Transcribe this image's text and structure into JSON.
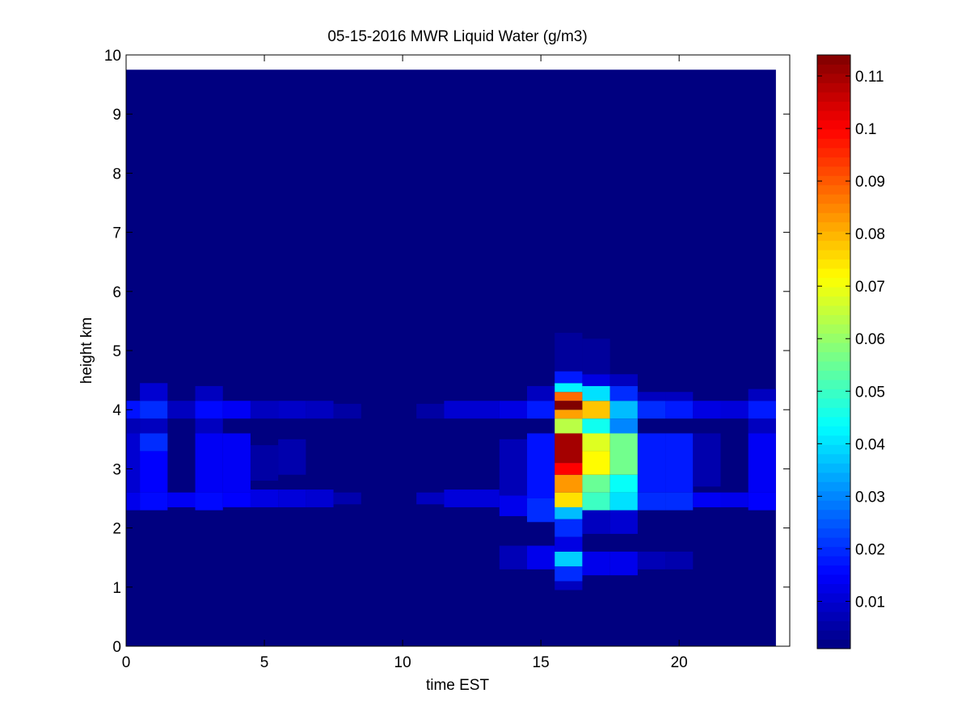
{
  "chart_data": {
    "type": "heatmap",
    "title": "05-15-2016 MWR Liquid Water (g/m3)",
    "xlabel": "time EST",
    "ylabel": "height km",
    "xlim": [
      0,
      24
    ],
    "ylim": [
      0,
      10
    ],
    "x_ticks": [
      0,
      5,
      10,
      15,
      20
    ],
    "y_ticks": [
      0,
      1,
      2,
      3,
      4,
      5,
      6,
      7,
      8,
      9,
      10
    ],
    "colormap": "jet",
    "colorbar": {
      "min": 0.001,
      "max": 0.114,
      "ticks": [
        0.01,
        0.02,
        0.03,
        0.04,
        0.05,
        0.06,
        0.07,
        0.08,
        0.09,
        0.1,
        0.11
      ]
    },
    "background_value": 0.001,
    "grid": false,
    "data_extent": {
      "x": [
        0,
        23.5
      ],
      "y": [
        0,
        9.75
      ]
    },
    "time_bins": [
      {
        "t": [
          0,
          0.5
        ],
        "layers": [
          [
            2.3,
            2.6,
            0.013
          ],
          [
            2.6,
            3.6,
            0.01
          ],
          [
            3.6,
            3.85,
            0.007
          ],
          [
            3.85,
            4.15,
            0.017
          ]
        ]
      },
      {
        "t": [
          0.5,
          1.5
        ],
        "layers": [
          [
            2.3,
            2.6,
            0.016
          ],
          [
            2.6,
            3.3,
            0.015
          ],
          [
            3.3,
            3.6,
            0.02
          ],
          [
            3.6,
            3.85,
            0.008
          ],
          [
            3.85,
            4.15,
            0.02
          ],
          [
            4.15,
            4.45,
            0.01
          ]
        ]
      },
      {
        "t": [
          1.5,
          2.5
        ],
        "layers": [
          [
            2.35,
            2.6,
            0.014
          ],
          [
            3.85,
            4.15,
            0.008
          ]
        ]
      },
      {
        "t": [
          2.5,
          3.5
        ],
        "layers": [
          [
            2.3,
            2.6,
            0.016
          ],
          [
            2.6,
            3.6,
            0.014
          ],
          [
            3.6,
            3.85,
            0.008
          ],
          [
            3.85,
            4.15,
            0.016
          ],
          [
            4.15,
            4.4,
            0.008
          ]
        ]
      },
      {
        "t": [
          3.5,
          4.5
        ],
        "layers": [
          [
            2.35,
            2.6,
            0.015
          ],
          [
            2.6,
            3.6,
            0.014
          ],
          [
            3.85,
            4.15,
            0.014
          ]
        ]
      },
      {
        "t": [
          4.5,
          5.5
        ],
        "layers": [
          [
            2.35,
            2.65,
            0.012
          ],
          [
            2.8,
            3.4,
            0.005
          ],
          [
            3.85,
            4.15,
            0.008
          ]
        ]
      },
      {
        "t": [
          5.5,
          6.5
        ],
        "layers": [
          [
            2.35,
            2.65,
            0.011
          ],
          [
            2.9,
            3.5,
            0.006
          ],
          [
            3.85,
            4.15,
            0.009
          ]
        ]
      },
      {
        "t": [
          6.5,
          7.5
        ],
        "layers": [
          [
            2.35,
            2.65,
            0.01
          ],
          [
            3.85,
            4.15,
            0.008
          ]
        ]
      },
      {
        "t": [
          7.5,
          8.5
        ],
        "layers": [
          [
            2.4,
            2.6,
            0.006
          ],
          [
            3.85,
            4.1,
            0.005
          ]
        ]
      },
      {
        "t": [
          10.5,
          11.5
        ],
        "layers": [
          [
            2.4,
            2.6,
            0.008
          ],
          [
            3.85,
            4.1,
            0.005
          ]
        ]
      },
      {
        "t": [
          11.5,
          13.5
        ],
        "layers": [
          [
            2.35,
            2.65,
            0.011
          ],
          [
            3.85,
            4.15,
            0.01
          ]
        ]
      },
      {
        "t": [
          13.5,
          14.5
        ],
        "layers": [
          [
            1.3,
            1.7,
            0.007
          ],
          [
            2.2,
            2.55,
            0.013
          ],
          [
            2.55,
            3.5,
            0.007
          ],
          [
            3.85,
            4.15,
            0.012
          ]
        ]
      },
      {
        "t": [
          14.5,
          15.5
        ],
        "layers": [
          [
            1.3,
            1.7,
            0.013
          ],
          [
            2.1,
            2.5,
            0.02
          ],
          [
            2.5,
            3.6,
            0.017
          ],
          [
            3.85,
            4.15,
            0.018
          ],
          [
            4.15,
            4.4,
            0.008
          ]
        ]
      },
      {
        "t": [
          15.5,
          16.5
        ],
        "layers": [
          [
            0.95,
            1.1,
            0.008
          ],
          [
            1.1,
            1.35,
            0.02
          ],
          [
            1.35,
            1.6,
            0.038
          ],
          [
            1.6,
            1.85,
            0.012
          ],
          [
            1.85,
            2.15,
            0.02
          ],
          [
            2.15,
            2.35,
            0.036
          ],
          [
            2.35,
            2.6,
            0.075
          ],
          [
            2.6,
            2.9,
            0.083
          ],
          [
            2.9,
            3.1,
            0.1
          ],
          [
            3.1,
            3.6,
            0.11
          ],
          [
            3.6,
            3.85,
            0.064
          ],
          [
            3.85,
            4.0,
            0.082
          ],
          [
            4.0,
            4.15,
            0.114
          ],
          [
            4.15,
            4.3,
            0.088
          ],
          [
            4.3,
            4.45,
            0.042
          ],
          [
            4.45,
            4.65,
            0.018
          ],
          [
            4.65,
            5.3,
            0.004
          ]
        ]
      },
      {
        "t": [
          16.5,
          17.5
        ],
        "layers": [
          [
            1.2,
            1.6,
            0.013
          ],
          [
            1.9,
            2.3,
            0.008
          ],
          [
            2.3,
            2.6,
            0.05
          ],
          [
            2.6,
            2.9,
            0.055
          ],
          [
            2.9,
            3.3,
            0.072
          ],
          [
            3.3,
            3.6,
            0.068
          ],
          [
            3.6,
            3.85,
            0.045
          ],
          [
            3.85,
            4.15,
            0.078
          ],
          [
            4.15,
            4.4,
            0.04
          ],
          [
            4.4,
            4.6,
            0.012
          ],
          [
            4.6,
            5.2,
            0.004
          ]
        ]
      },
      {
        "t": [
          17.5,
          18.5
        ],
        "layers": [
          [
            1.2,
            1.6,
            0.013
          ],
          [
            1.9,
            2.3,
            0.01
          ],
          [
            2.3,
            2.6,
            0.04
          ],
          [
            2.6,
            2.9,
            0.044
          ],
          [
            2.9,
            3.6,
            0.056
          ],
          [
            3.6,
            3.85,
            0.03
          ],
          [
            3.85,
            4.15,
            0.036
          ],
          [
            4.15,
            4.4,
            0.02
          ],
          [
            4.4,
            4.6,
            0.008
          ]
        ]
      },
      {
        "t": [
          18.5,
          19.5
        ],
        "layers": [
          [
            1.3,
            1.6,
            0.007
          ],
          [
            2.3,
            2.6,
            0.02
          ],
          [
            2.6,
            3.6,
            0.018
          ],
          [
            3.85,
            4.15,
            0.02
          ],
          [
            4.15,
            4.3,
            0.008
          ]
        ]
      },
      {
        "t": [
          19.5,
          20.5
        ],
        "layers": [
          [
            1.3,
            1.6,
            0.006
          ],
          [
            2.3,
            2.6,
            0.02
          ],
          [
            2.6,
            3.6,
            0.018
          ],
          [
            3.85,
            4.15,
            0.018
          ],
          [
            4.15,
            4.3,
            0.008
          ]
        ]
      },
      {
        "t": [
          20.5,
          21.5
        ],
        "layers": [
          [
            2.35,
            2.6,
            0.014
          ],
          [
            2.7,
            3.6,
            0.006
          ],
          [
            3.85,
            4.15,
            0.012
          ]
        ]
      },
      {
        "t": [
          21.5,
          22.5
        ],
        "layers": [
          [
            2.35,
            2.6,
            0.013
          ],
          [
            3.85,
            4.15,
            0.011
          ]
        ]
      },
      {
        "t": [
          22.5,
          23.5
        ],
        "layers": [
          [
            2.3,
            2.6,
            0.015
          ],
          [
            2.6,
            3.6,
            0.014
          ],
          [
            3.6,
            3.85,
            0.008
          ],
          [
            3.85,
            4.15,
            0.018
          ],
          [
            4.15,
            4.35,
            0.008
          ]
        ]
      }
    ]
  }
}
